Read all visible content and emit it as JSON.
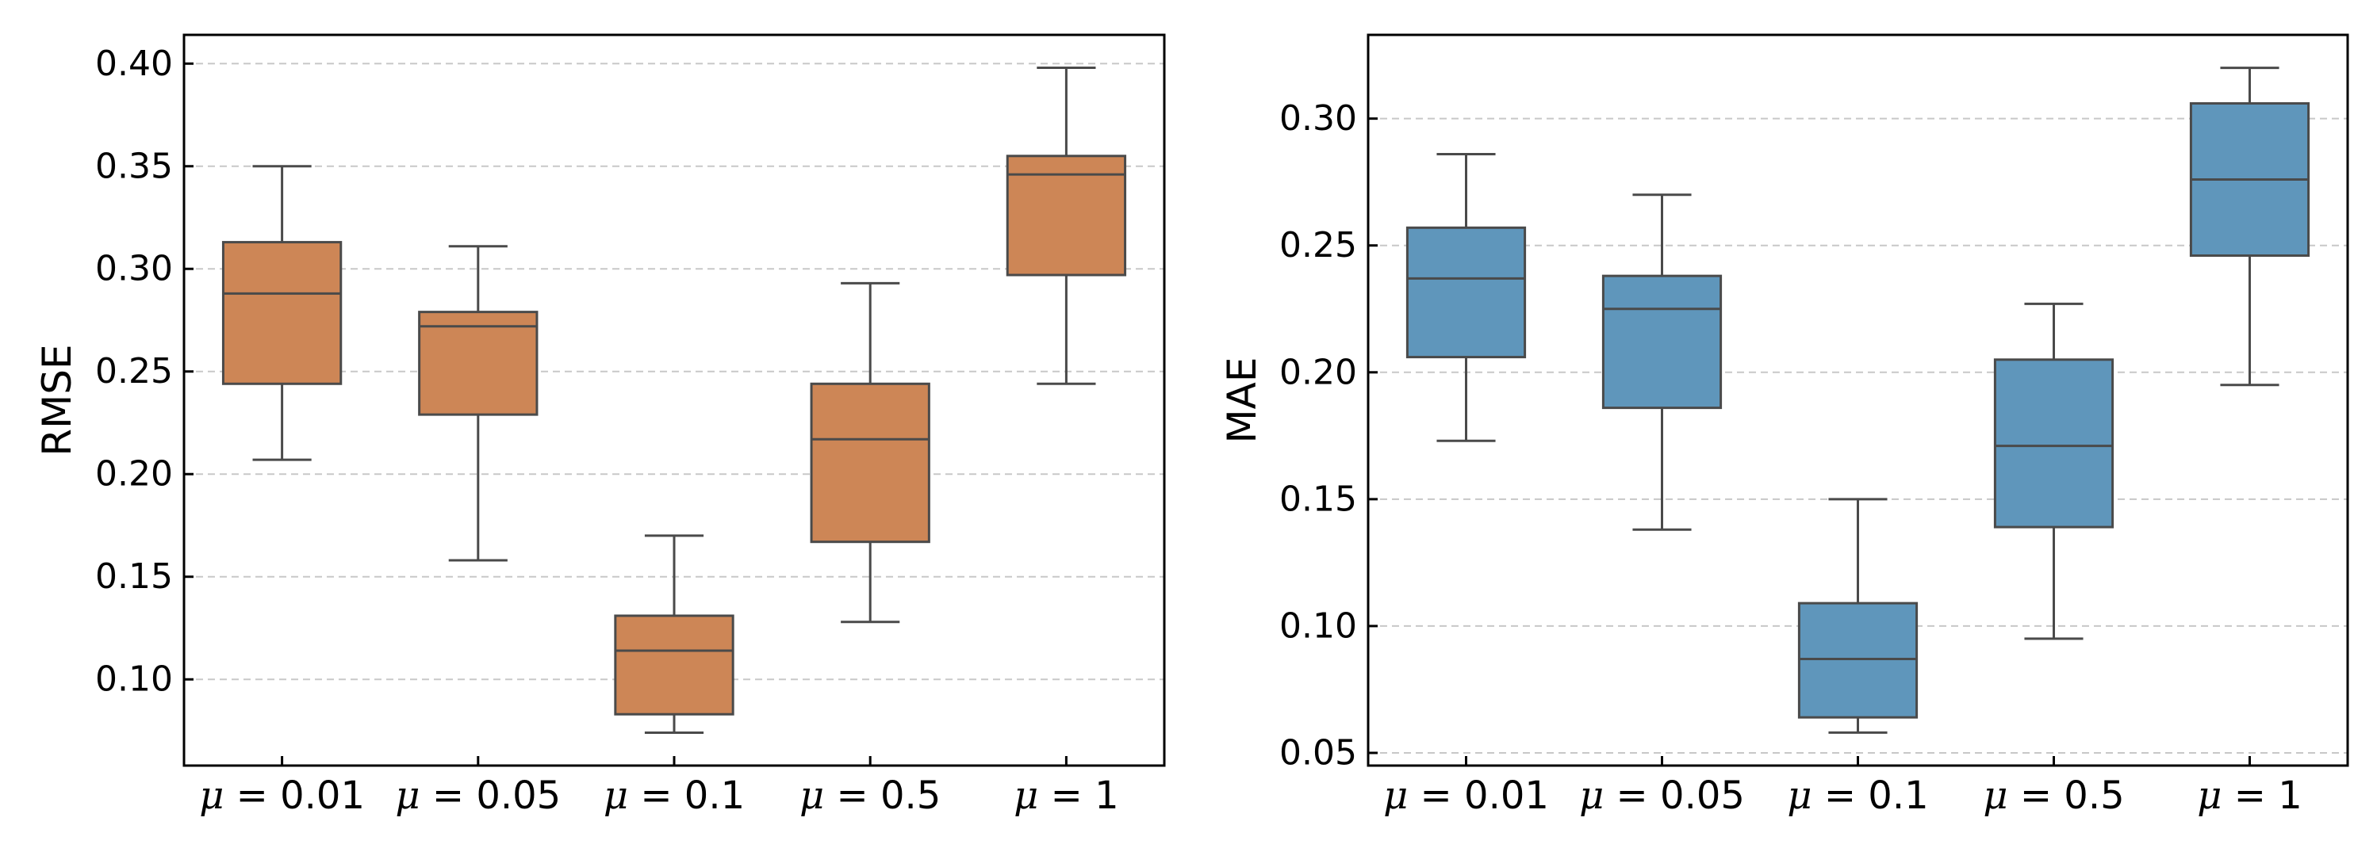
{
  "chart_data": [
    {
      "type": "box",
      "categories": [
        "μ = 0.01",
        "μ = 0.05",
        "μ = 0.1",
        "μ = 0.5",
        "μ = 1"
      ],
      "category_symbol": "μ",
      "category_values": [
        "0.01",
        "0.05",
        "0.1",
        "0.5",
        "1"
      ],
      "ylabel": "RMSE",
      "xlabel": "",
      "title": "",
      "ylim": [
        0.058,
        0.414
      ],
      "yticks": [
        0.1,
        0.15,
        0.2,
        0.25,
        0.3,
        0.35,
        0.4
      ],
      "ytick_labels": [
        "0.10",
        "0.15",
        "0.20",
        "0.25",
        "0.30",
        "0.35",
        "0.40"
      ],
      "grid": "horizontal dashed",
      "color": "#cd8656",
      "boxes": [
        {
          "whislo": 0.207,
          "q1": 0.244,
          "med": 0.288,
          "q3": 0.313,
          "whishi": 0.35
        },
        {
          "whislo": 0.158,
          "q1": 0.229,
          "med": 0.272,
          "q3": 0.279,
          "whishi": 0.311
        },
        {
          "whislo": 0.074,
          "q1": 0.083,
          "med": 0.114,
          "q3": 0.131,
          "whishi": 0.17
        },
        {
          "whislo": 0.128,
          "q1": 0.167,
          "med": 0.217,
          "q3": 0.244,
          "whishi": 0.293
        },
        {
          "whislo": 0.244,
          "q1": 0.297,
          "med": 0.346,
          "q3": 0.355,
          "whishi": 0.398
        }
      ]
    },
    {
      "type": "box",
      "categories": [
        "μ = 0.01",
        "μ = 0.05",
        "μ = 0.1",
        "μ = 0.5",
        "μ = 1"
      ],
      "category_symbol": "μ",
      "category_values": [
        "0.01",
        "0.05",
        "0.1",
        "0.5",
        "1"
      ],
      "ylabel": "MAE",
      "xlabel": "",
      "title": "",
      "ylim": [
        0.045,
        0.333
      ],
      "yticks": [
        0.05,
        0.1,
        0.15,
        0.2,
        0.25,
        0.3
      ],
      "ytick_labels": [
        "0.05",
        "0.10",
        "0.15",
        "0.20",
        "0.25",
        "0.30"
      ],
      "grid": "horizontal dashed",
      "color": "#5f96bb",
      "boxes": [
        {
          "whislo": 0.173,
          "q1": 0.206,
          "med": 0.237,
          "q3": 0.257,
          "whishi": 0.286
        },
        {
          "whislo": 0.138,
          "q1": 0.186,
          "med": 0.225,
          "q3": 0.238,
          "whishi": 0.27
        },
        {
          "whislo": 0.058,
          "q1": 0.064,
          "med": 0.087,
          "q3": 0.109,
          "whishi": 0.15
        },
        {
          "whislo": 0.095,
          "q1": 0.139,
          "med": 0.171,
          "q3": 0.205,
          "whishi": 0.227
        },
        {
          "whislo": 0.195,
          "q1": 0.246,
          "med": 0.276,
          "q3": 0.306,
          "whishi": 0.32
        }
      ]
    }
  ]
}
